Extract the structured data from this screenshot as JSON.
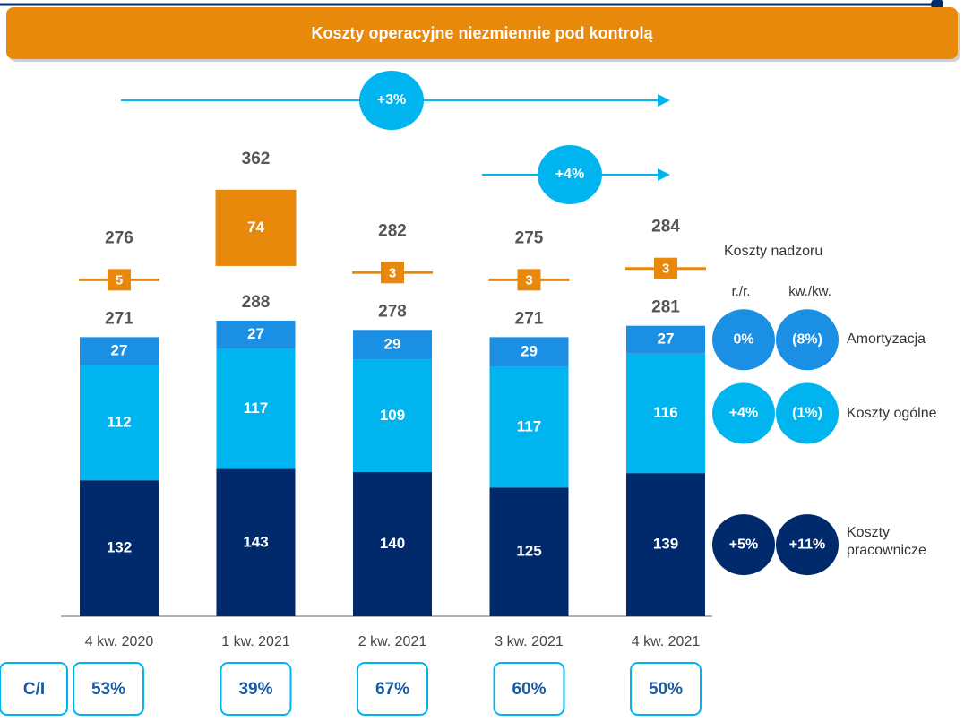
{
  "header": {
    "title": "Koszty operacyjne niezmiennie pod kontrolą"
  },
  "chart_data": {
    "type": "bar",
    "stacked": true,
    "categories": [
      "4 kw. 2020",
      "1 kw. 2021",
      "2 kw. 2021",
      "3 kw. 2021",
      "4 kw. 2021"
    ],
    "series": [
      {
        "name": "Koszty pracownicze",
        "color": "#002a6b",
        "values": [
          132,
          143,
          140,
          125,
          139
        ],
        "changes": [
          "+5%",
          "+11%"
        ]
      },
      {
        "name": "Koszty ogólne",
        "color": "#00b5ef",
        "values": [
          112,
          117,
          109,
          117,
          116
        ],
        "changes": [
          "+4%",
          "(1%)"
        ]
      },
      {
        "name": "Amortyzacja",
        "color": "#1a8fe3",
        "values": [
          27,
          27,
          29,
          29,
          27
        ],
        "changes": [
          "0%",
          "(8%)"
        ]
      },
      {
        "name": "Koszty nadzoru",
        "color": "#e8890c",
        "values": [
          5,
          74,
          3,
          3,
          3
        ]
      }
    ],
    "subtotals": [
      271,
      288,
      278,
      271,
      281
    ],
    "totals": [
      276,
      362,
      282,
      275,
      284
    ],
    "annotations": [
      "+3%",
      "+4%"
    ],
    "change_headers": [
      "r./r.",
      "kw./kw."
    ],
    "ratio": {
      "label": "C/I",
      "values": [
        53,
        39,
        67,
        60,
        50
      ],
      "value_labels": [
        "53%",
        "39%",
        "67%",
        "60%",
        "50%"
      ]
    }
  }
}
